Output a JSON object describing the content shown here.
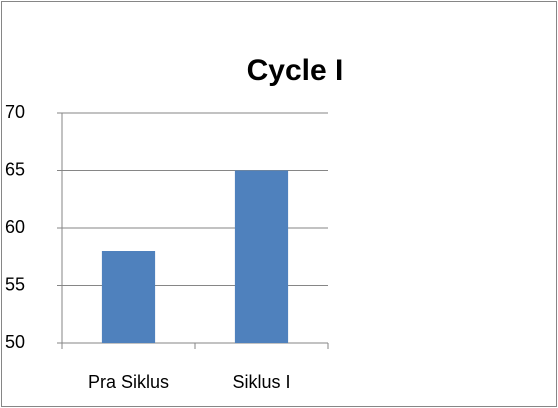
{
  "chart_data": {
    "type": "bar",
    "title": "Cycle I",
    "categories": [
      "Pra Siklus",
      "Siklus I"
    ],
    "values": [
      58,
      65
    ],
    "color": "#4f81bd",
    "ylim": [
      50,
      70
    ],
    "yticks": [
      50,
      55,
      60,
      65,
      70
    ],
    "grid": true
  }
}
